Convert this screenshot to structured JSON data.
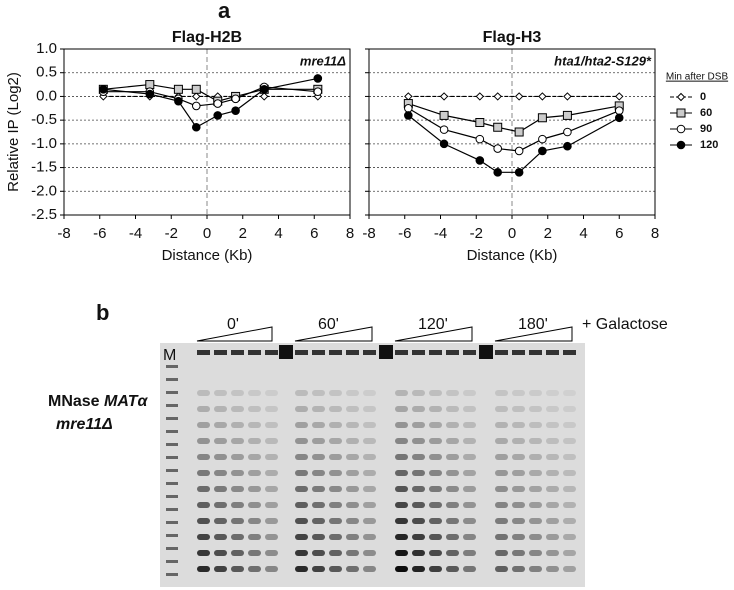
{
  "panel_labels": [
    "a",
    "b"
  ],
  "chart_data": [
    {
      "type": "line",
      "title": "Flag-H2B",
      "annotation": "mre11Δ",
      "y_label": "Relative IP (Log2)",
      "x_label": "Distance (Kb)",
      "xlim": [
        -8,
        8
      ],
      "xticks": [
        -8,
        -6,
        -4,
        -2,
        0,
        2,
        4,
        6,
        8
      ],
      "ylim": [
        -2.5,
        1
      ],
      "yticks": [
        {
          "value": 1,
          "label": "1.0"
        },
        {
          "value": 0.5,
          "label": "0.5"
        },
        {
          "value": 0,
          "label": "0.0"
        },
        {
          "value": -0.5,
          "label": "-0.5"
        },
        {
          "value": -1,
          "label": "-1.0"
        },
        {
          "value": -1.5,
          "label": "-1.5"
        },
        {
          "value": -2,
          "label": "-2.0"
        },
        {
          "value": -2.5,
          "label": "-2.5"
        }
      ],
      "grid": true,
      "x": [
        -5.8,
        -3.2,
        -1.6,
        -0.6,
        0.6,
        1.6,
        3.2,
        6.2
      ],
      "series": [
        {
          "marker": "diamond",
          "color": "#ffffff",
          "values": [
            0,
            0,
            0,
            0,
            0,
            0,
            0,
            0
          ]
        },
        {
          "marker": "square",
          "color": "#cccccc",
          "values": [
            0.15,
            0.25,
            0.15,
            0.15,
            -0.1,
            0,
            0.15,
            0.15
          ]
        },
        {
          "marker": "circle",
          "color": "#ffffff",
          "values": [
            0.1,
            0.1,
            -0.05,
            -0.2,
            -0.15,
            -0.05,
            0.2,
            0.1
          ]
        },
        {
          "marker": "circle",
          "color": "#000000",
          "values": [
            0.15,
            0.05,
            -0.1,
            -0.65,
            -0.4,
            -0.3,
            0.15,
            0.38
          ]
        }
      ]
    },
    {
      "type": "line",
      "title": "Flag-H3",
      "annotation": "hta1/hta2-S129*",
      "x_label": "Distance (Kb)",
      "xlim": [
        -8,
        8
      ],
      "xticks": [
        -8,
        -6,
        -4,
        -2,
        0,
        2,
        4,
        6,
        8
      ],
      "ylim": [
        -2.5,
        1
      ],
      "yticks": [
        1,
        0.5,
        0,
        -0.5,
        -1,
        -1.5,
        -2,
        -2.5
      ],
      "grid": true,
      "legend": "right",
      "legend_title": "Min after DSB",
      "x": [
        -5.8,
        -3.8,
        -1.8,
        -0.8,
        0.4,
        1.7,
        3.1,
        6.0
      ],
      "series": [
        {
          "name": "0",
          "marker": "diamond",
          "color": "#ffffff",
          "values": [
            0,
            0,
            0,
            0,
            0,
            0,
            0,
            0
          ]
        },
        {
          "name": "60",
          "marker": "square",
          "color": "#cccccc",
          "values": [
            -0.15,
            -0.4,
            -0.55,
            -0.65,
            -0.75,
            -0.45,
            -0.4,
            -0.2
          ]
        },
        {
          "name": "90",
          "marker": "circle",
          "color": "#ffffff",
          "values": [
            -0.25,
            -0.7,
            -0.9,
            -1.1,
            -1.15,
            -0.9,
            -0.75,
            -0.3
          ]
        },
        {
          "name": "120",
          "marker": "circle",
          "color": "#000000",
          "values": [
            -0.4,
            -1.0,
            -1.35,
            -1.6,
            -1.6,
            -1.15,
            -1.05,
            -0.45
          ]
        }
      ]
    }
  ],
  "gel": {
    "marker_lane": "M",
    "timepoints": [
      "0'",
      "60'",
      "120'",
      "180'"
    ],
    "treatment": "+ Galactose",
    "label": [
      "MNase",
      "MATα",
      "mre11Δ"
    ]
  }
}
